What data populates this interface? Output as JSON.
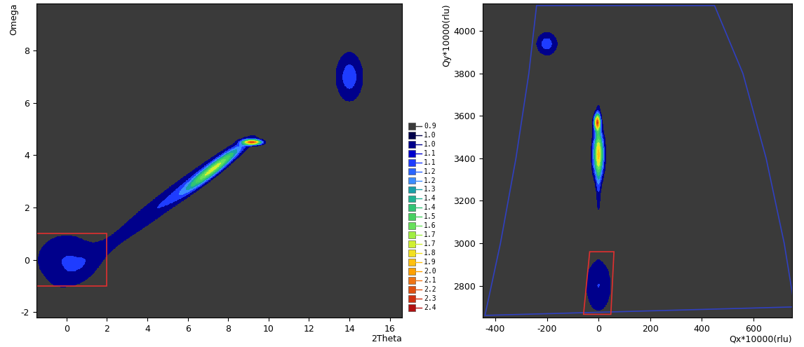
{
  "color_scale": {
    "levels": [
      0.9,
      1.0,
      1.0,
      1.1,
      1.1,
      1.2,
      1.2,
      1.3,
      1.4,
      1.4,
      1.5,
      1.6,
      1.7,
      1.7,
      1.8,
      1.9,
      2.0,
      2.1,
      2.2,
      2.3,
      2.4
    ],
    "colors": [
      "#3a3a3a",
      "#00004a",
      "#00008b",
      "#0000cd",
      "#1e3cff",
      "#2a64ff",
      "#3c8cff",
      "#1aa0a8",
      "#20b494",
      "#30c474",
      "#46d060",
      "#66e05a",
      "#a0ee40",
      "#d0f030",
      "#f2e020",
      "#ffc010",
      "#ffa000",
      "#f07414",
      "#e05010",
      "#d03010",
      "#b01010"
    ]
  },
  "chart_data": [
    {
      "type": "contour",
      "xlabel": "2Theta",
      "ylabel": "Omega",
      "xlim": [
        -1.5,
        16.6
      ],
      "ylim": [
        -2.2,
        9.8
      ],
      "xticks": [
        0,
        2,
        4,
        6,
        8,
        10,
        12,
        14,
        16
      ],
      "yticks": [
        -2,
        0,
        2,
        4,
        6,
        8
      ],
      "peaks": [
        {
          "x": 7.3,
          "y": 3.5,
          "sx": 0.9,
          "sy": 0.55,
          "rho": 0.95,
          "height": 0.75
        },
        {
          "x": 5.0,
          "y": 2.3,
          "sx": 2.5,
          "sy": 1.5,
          "rho": 0.97,
          "height": 0.2
        },
        {
          "x": 9.2,
          "y": 4.5,
          "sx": 0.3,
          "sy": 0.07,
          "rho": 0.0,
          "height": 1.3
        },
        {
          "x": 14.0,
          "y": 7.0,
          "sx": 0.5,
          "sy": 0.7,
          "rho": 0.0,
          "height": 0.25
        },
        {
          "x": 0.0,
          "y": 0.0,
          "sx": 1.2,
          "sy": 0.8,
          "rho": 0.0,
          "height": 0.2
        }
      ],
      "region": [
        [
          -1.5,
          -1.0
        ],
        [
          2.0,
          -1.0
        ],
        [
          2.0,
          1.0
        ],
        [
          -1.5,
          1.0
        ]
      ],
      "region_color": "#e03030"
    },
    {
      "type": "contour",
      "xlabel": "Qx*10000(rlu)",
      "ylabel": "Qy*10000(rlu)",
      "xlim": [
        -450,
        750
      ],
      "ylim": [
        2650,
        4130
      ],
      "xticks": [
        -400,
        -200,
        0,
        200,
        400,
        600
      ],
      "yticks": [
        2800,
        3000,
        3200,
        3400,
        3600,
        3800,
        4000
      ],
      "peaks": [
        {
          "x": 0,
          "y": 3420,
          "sx": 15,
          "sy": 70,
          "rho": 0.0,
          "height": 0.8
        },
        {
          "x": 0,
          "y": 3400,
          "sx": 8,
          "sy": 180,
          "rho": 0.0,
          "height": 0.25
        },
        {
          "x": -5,
          "y": 3570,
          "sx": 8,
          "sy": 25,
          "rho": 0.0,
          "height": 1.2
        },
        {
          "x": -200,
          "y": 3940,
          "sx": 30,
          "sy": 40,
          "rho": 0.0,
          "height": 0.25
        },
        {
          "x": 0,
          "y": 2800,
          "sx": 40,
          "sy": 100,
          "rho": 0.0,
          "height": 0.2
        }
      ],
      "boundary": [
        [
          -440,
          2660
        ],
        [
          -380,
          3000
        ],
        [
          -320,
          3400
        ],
        [
          -270,
          3800
        ],
        [
          -240,
          4120
        ],
        [
          450,
          4120
        ],
        [
          560,
          3800
        ],
        [
          650,
          3400
        ],
        [
          720,
          3000
        ],
        [
          760,
          2700
        ]
      ],
      "boundary_color": "#3040c0",
      "region": [
        [
          -58,
          2665
        ],
        [
          48,
          2665
        ],
        [
          60,
          2960
        ],
        [
          -34,
          2960
        ]
      ],
      "region_color": "#e03030"
    }
  ]
}
